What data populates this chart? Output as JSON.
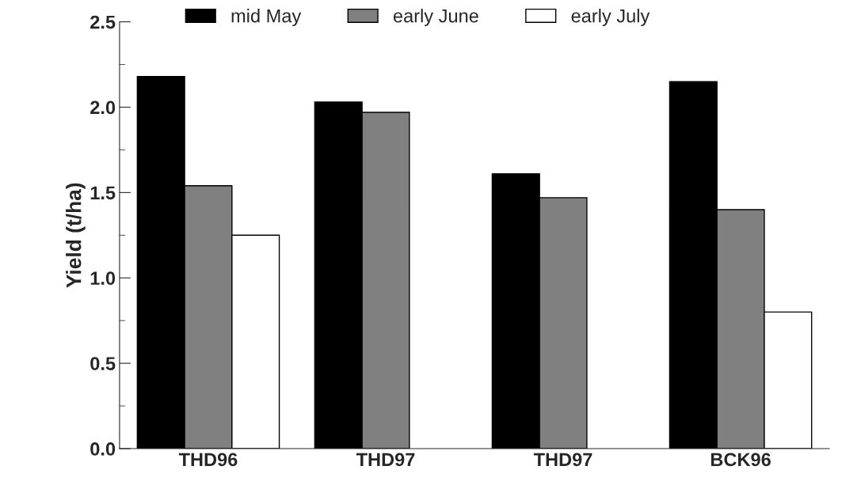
{
  "chart_data": {
    "type": "bar",
    "ylabel": "Yield (t/ha)",
    "categories": [
      "THD96",
      "THD97",
      "THD97",
      "BCK96"
    ],
    "series": [
      {
        "name": "mid May",
        "color": "#000000",
        "values": [
          2.18,
          2.03,
          1.61,
          2.15
        ]
      },
      {
        "name": "early June",
        "color": "#808080",
        "values": [
          1.54,
          1.97,
          1.47,
          1.4
        ]
      },
      {
        "name": "early July",
        "color": "#ffffff",
        "values": [
          1.25,
          null,
          null,
          0.8
        ]
      }
    ],
    "ylim": [
      0,
      2.5
    ],
    "yticks": [
      {
        "value": 0,
        "label": "0.0"
      },
      {
        "value": 0.5,
        "label": "0.5"
      },
      {
        "value": 1,
        "label": "1.0"
      },
      {
        "value": 1.5,
        "label": "1.5"
      },
      {
        "value": 2,
        "label": "2.0"
      },
      {
        "value": 2.5,
        "label": "2.5"
      }
    ],
    "grid": false,
    "legend": "top"
  }
}
